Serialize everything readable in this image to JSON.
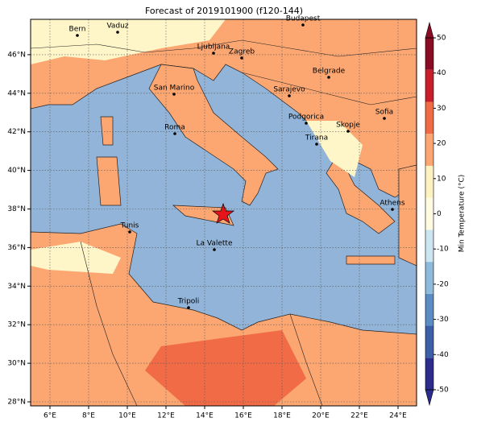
{
  "map": {
    "title": "Forecast of 2019101900 (f120-144)",
    "xticks": [
      {
        "value": 6,
        "label": "6°E"
      },
      {
        "value": 8,
        "label": "8°E"
      },
      {
        "value": 10,
        "label": "10°E"
      },
      {
        "value": 12,
        "label": "12°E"
      },
      {
        "value": 14,
        "label": "14°E"
      },
      {
        "value": 16,
        "label": "16°E"
      },
      {
        "value": 18,
        "label": "18°E"
      },
      {
        "value": 20,
        "label": "20°E"
      },
      {
        "value": 22,
        "label": "22°E"
      },
      {
        "value": 24,
        "label": "24°E"
      }
    ],
    "yticks": [
      {
        "value": 28,
        "label": "28°N"
      },
      {
        "value": 30,
        "label": "30°N"
      },
      {
        "value": 32,
        "label": "32°N"
      },
      {
        "value": 34,
        "label": "34°N"
      },
      {
        "value": 36,
        "label": "36°N"
      },
      {
        "value": 38,
        "label": "38°N"
      },
      {
        "value": 40,
        "label": "40°N"
      },
      {
        "value": 42,
        "label": "42°N"
      },
      {
        "value": 44,
        "label": "44°N"
      },
      {
        "value": 46,
        "label": "46°N"
      }
    ],
    "cities": [
      "Bern",
      "Vaduz",
      "Budapest",
      "Ljubljana",
      "Zagreb",
      "Belgrade",
      "San Marino",
      "Sarajevo",
      "Sofia",
      "Podgorica",
      "Skopje",
      "Roma",
      "Tirana",
      "Athens",
      "Tunis",
      "La Valette",
      "Tripoli"
    ]
  },
  "colorbar": {
    "label": "Min Temperature (°C)",
    "ticks": [
      -50,
      -40,
      -30,
      -20,
      -10,
      0,
      10,
      20,
      30,
      40,
      50
    ],
    "colors": [
      "#2b2c8c",
      "#3d5fa8",
      "#5b8cc2",
      "#8fbbdb",
      "#cbe6f1",
      "#fffbe0",
      "#fef3c0",
      "#fca672",
      "#ef6a45",
      "#c81e2b",
      "#8a0b24"
    ]
  }
}
